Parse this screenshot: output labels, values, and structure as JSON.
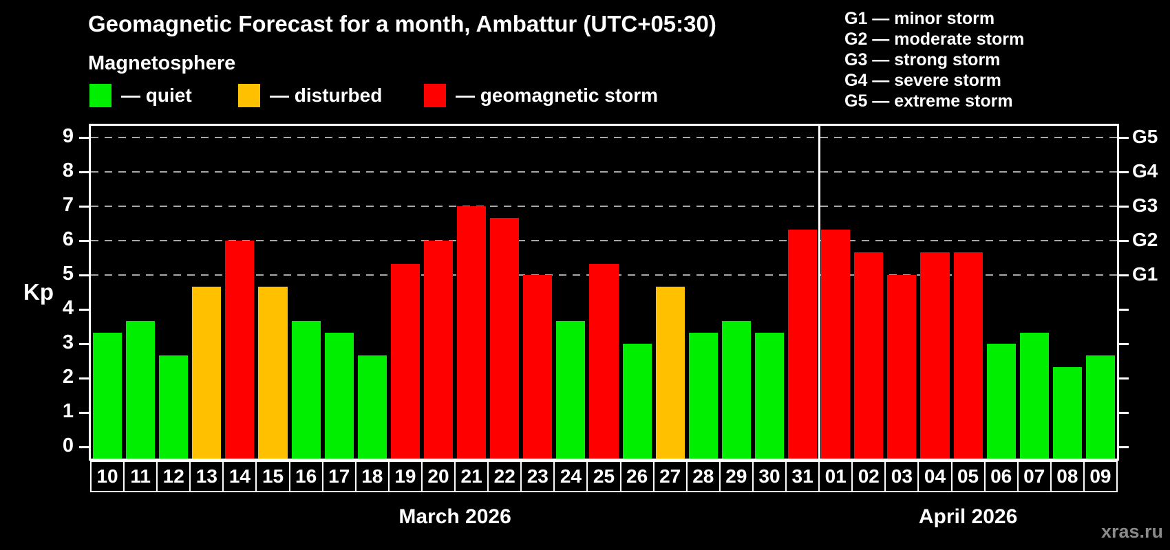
{
  "header": {
    "title": "Geomagnetic Forecast for a month, Ambattur (UTC+05:30)",
    "subtitle": "Magnetosphere"
  },
  "legend": {
    "items": [
      {
        "status": "quiet",
        "label": "— quiet"
      },
      {
        "status": "disturbed",
        "label": "— disturbed"
      },
      {
        "status": "storm",
        "label": "— geomagnetic storm"
      }
    ]
  },
  "g_legend": {
    "lines": [
      "G1 — minor storm",
      "G2 — moderate storm",
      "G3 — strong storm",
      "G4 — severe storm",
      "G5 — extreme storm"
    ]
  },
  "watermark": "xras.ru",
  "chart_data": {
    "type": "bar",
    "title": "Geomagnetic Forecast for a month, Ambattur (UTC+05:30)",
    "ylabel": "Kp",
    "ylim": [
      0,
      9
    ],
    "yticks": [
      0,
      1,
      2,
      3,
      4,
      5,
      6,
      7,
      8,
      9
    ],
    "gridlines_at": [
      5,
      6,
      7,
      8,
      9
    ],
    "grid": true,
    "legend_position": "top",
    "right_axis": [
      {
        "value": 5,
        "label": "G1"
      },
      {
        "value": 6,
        "label": "G2"
      },
      {
        "value": 7,
        "label": "G3"
      },
      {
        "value": 8,
        "label": "G4"
      },
      {
        "value": 9,
        "label": "G5"
      }
    ],
    "status_colors": {
      "quiet": "#00ee00",
      "disturbed": "#ffc000",
      "storm": "#ff0000"
    },
    "months": [
      {
        "label": "March 2026",
        "bars": [
          {
            "day": "10",
            "kp": 3.33,
            "status": "quiet"
          },
          {
            "day": "11",
            "kp": 3.67,
            "status": "quiet"
          },
          {
            "day": "12",
            "kp": 2.67,
            "status": "quiet"
          },
          {
            "day": "13",
            "kp": 4.67,
            "status": "disturbed"
          },
          {
            "day": "14",
            "kp": 6.0,
            "status": "storm"
          },
          {
            "day": "15",
            "kp": 4.67,
            "status": "disturbed"
          },
          {
            "day": "16",
            "kp": 3.67,
            "status": "quiet"
          },
          {
            "day": "17",
            "kp": 3.33,
            "status": "quiet"
          },
          {
            "day": "18",
            "kp": 2.67,
            "status": "quiet"
          },
          {
            "day": "19",
            "kp": 5.33,
            "status": "storm"
          },
          {
            "day": "20",
            "kp": 6.0,
            "status": "storm"
          },
          {
            "day": "21",
            "kp": 7.0,
            "status": "storm"
          },
          {
            "day": "22",
            "kp": 6.67,
            "status": "storm"
          },
          {
            "day": "23",
            "kp": 5.0,
            "status": "storm"
          },
          {
            "day": "24",
            "kp": 3.67,
            "status": "quiet"
          },
          {
            "day": "25",
            "kp": 5.33,
            "status": "storm"
          },
          {
            "day": "26",
            "kp": 3.0,
            "status": "quiet"
          },
          {
            "day": "27",
            "kp": 4.67,
            "status": "disturbed"
          },
          {
            "day": "28",
            "kp": 3.33,
            "status": "quiet"
          },
          {
            "day": "29",
            "kp": 3.67,
            "status": "quiet"
          },
          {
            "day": "30",
            "kp": 3.33,
            "status": "quiet"
          },
          {
            "day": "31",
            "kp": 6.33,
            "status": "storm"
          }
        ]
      },
      {
        "label": "April 2026",
        "bars": [
          {
            "day": "01",
            "kp": 6.33,
            "status": "storm"
          },
          {
            "day": "02",
            "kp": 5.67,
            "status": "storm"
          },
          {
            "day": "03",
            "kp": 5.0,
            "status": "storm"
          },
          {
            "day": "04",
            "kp": 5.67,
            "status": "storm"
          },
          {
            "day": "05",
            "kp": 5.67,
            "status": "storm"
          },
          {
            "day": "06",
            "kp": 3.0,
            "status": "quiet"
          },
          {
            "day": "07",
            "kp": 3.33,
            "status": "quiet"
          },
          {
            "day": "08",
            "kp": 2.33,
            "status": "quiet"
          },
          {
            "day": "09",
            "kp": 2.67,
            "status": "quiet"
          }
        ]
      }
    ]
  }
}
